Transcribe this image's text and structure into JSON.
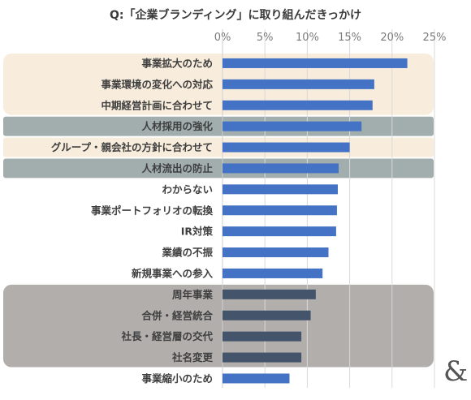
{
  "title": "Q:「企業ブランディング」に取り組んだきっかけ",
  "logo_mark": "&",
  "chart_data": {
    "type": "bar",
    "orientation": "horizontal",
    "title": "Q:「企業ブランディング」に取り組んだきっかけ",
    "xlim": [
      0,
      25
    ],
    "x_ticks": [
      0,
      5,
      10,
      15,
      20,
      25
    ],
    "x_tick_labels": [
      "0%",
      "5%",
      "10%",
      "15%",
      "20%",
      "25%"
    ],
    "grid": true,
    "categories": [
      "事業拡大のため",
      "事業環境の変化への対応",
      "中期経営計画に合わせて",
      "人材採用の強化",
      "グループ・親会社の方針に合わせて",
      "人材流出の防止",
      "わからない",
      "事業ポートフォリオの転換",
      "IR対策",
      "業績の不振",
      "新規事業への参入",
      "周年事業",
      "合併・経営統合",
      "社長・経営層の交代",
      "社名変更",
      "事業縮小のため"
    ],
    "values": [
      21.8,
      17.9,
      17.7,
      16.4,
      15.0,
      13.7,
      13.6,
      13.5,
      13.4,
      12.5,
      11.8,
      11.0,
      10.4,
      9.3,
      9.3,
      7.9
    ],
    "bar_colors": [
      "#4472c4",
      "#4472c4",
      "#4472c4",
      "#4472c4",
      "#4472c4",
      "#4472c4",
      "#4472c4",
      "#4472c4",
      "#4472c4",
      "#4472c4",
      "#4472c4",
      "#44546a",
      "#44546a",
      "#44546a",
      "#44546a",
      "#4472c4"
    ],
    "highlight_groups": [
      {
        "rows": [
          0,
          2
        ],
        "color": "#f8eddc"
      },
      {
        "rows": [
          3,
          3
        ],
        "color": "#a2aeae"
      },
      {
        "rows": [
          4,
          4
        ],
        "color": "#f8eddc"
      },
      {
        "rows": [
          5,
          5
        ],
        "color": "#a2aeae"
      },
      {
        "rows": [
          11,
          14
        ],
        "color": "#b1aeac"
      }
    ]
  }
}
